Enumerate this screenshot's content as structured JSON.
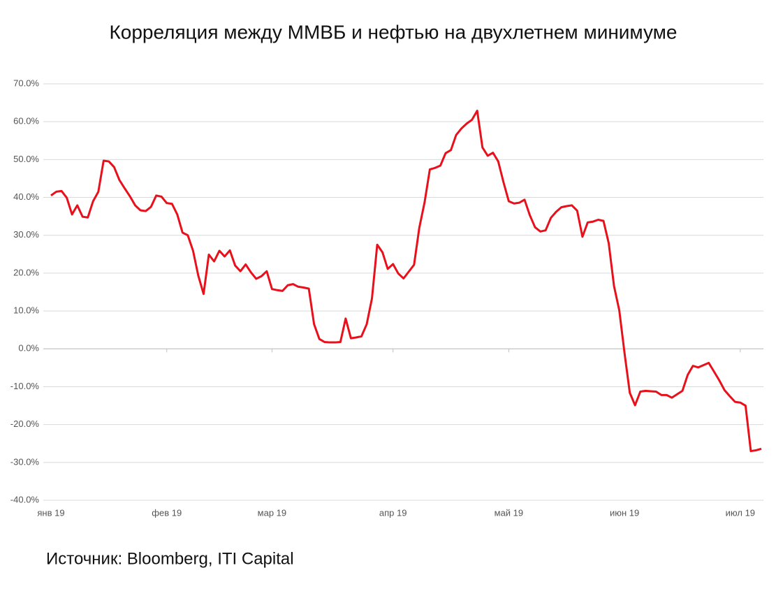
{
  "chart_data": {
    "type": "line",
    "title": "Корреляция между ММВБ и нефтью на двухлетнем минимуме",
    "source": "Источник: Bloomberg, ITI Capital",
    "categories": [
      "янв 19",
      null,
      null,
      null,
      null,
      null,
      null,
      null,
      null,
      null,
      null,
      null,
      null,
      null,
      null,
      null,
      null,
      null,
      null,
      null,
      null,
      null,
      "фев 19",
      null,
      null,
      null,
      null,
      null,
      null,
      null,
      null,
      null,
      null,
      null,
      null,
      null,
      null,
      null,
      null,
      null,
      null,
      null,
      "мар 19",
      null,
      null,
      null,
      null,
      null,
      null,
      null,
      null,
      null,
      null,
      null,
      null,
      null,
      null,
      null,
      null,
      null,
      null,
      null,
      null,
      null,
      null,
      "апр 19",
      null,
      null,
      null,
      null,
      null,
      null,
      null,
      null,
      null,
      null,
      null,
      null,
      null,
      null,
      null,
      null,
      null,
      null,
      null,
      null,
      null,
      "май 19",
      null,
      null,
      null,
      null,
      null,
      null,
      null,
      null,
      null,
      null,
      null,
      null,
      null,
      null,
      null,
      null,
      null,
      null,
      null,
      null,
      null,
      "июн 19",
      null,
      null,
      null,
      null,
      null,
      null,
      null,
      null,
      null,
      null,
      null,
      null,
      null,
      null,
      null,
      null,
      null,
      null,
      null,
      null,
      null,
      "июл 19",
      null,
      null,
      null,
      null
    ],
    "values": [
      40.5,
      41.5,
      41.7,
      39.9,
      35.5,
      37.9,
      34.9,
      34.7,
      39.0,
      41.5,
      49.7,
      49.5,
      48.0,
      44.6,
      42.4,
      40.3,
      37.9,
      36.6,
      36.4,
      37.5,
      40.5,
      40.2,
      38.5,
      38.3,
      35.5,
      30.7,
      30.0,
      25.9,
      19.3,
      14.5,
      24.9,
      23.1,
      25.9,
      24.4,
      26.0,
      22.0,
      20.5,
      22.3,
      20.2,
      18.5,
      19.2,
      20.5,
      15.8,
      15.5,
      15.3,
      16.8,
      17.1,
      16.4,
      16.2,
      15.9,
      6.5,
      2.6,
      1.8,
      1.7,
      1.7,
      1.8,
      8.0,
      2.8,
      3.0,
      3.3,
      6.5,
      13.3,
      27.5,
      25.5,
      21.1,
      22.4,
      19.9,
      18.6,
      20.4,
      22.2,
      32.0,
      38.7,
      47.4,
      47.8,
      48.4,
      51.7,
      52.5,
      56.5,
      58.2,
      59.5,
      60.5,
      62.9,
      53.2,
      51.0,
      51.8,
      49.5,
      44.0,
      39.0,
      38.4,
      38.6,
      39.4,
      35.3,
      32.1,
      31.0,
      31.3,
      34.6,
      36.2,
      37.4,
      37.7,
      37.9,
      36.5,
      29.6,
      33.4,
      33.6,
      34.1,
      33.8,
      27.9,
      16.6,
      10.2,
      -1.1,
      -11.6,
      -14.9,
      -11.3,
      -11.1,
      -11.2,
      -11.3,
      -12.2,
      -12.2,
      -12.9,
      -12.0,
      -11.1,
      -6.9,
      -4.5,
      -4.9,
      -4.3,
      -3.7,
      -6.0,
      -8.3,
      -10.9,
      -12.5,
      -14.0,
      -14.2,
      -15.0,
      -27.0,
      -26.8,
      -26.4
    ],
    "color": "#e8101a",
    "ylim": [
      -40,
      70
    ],
    "yticks": [
      {
        "value": -40,
        "label": "-40.0%"
      },
      {
        "value": -30,
        "label": "-30.0%"
      },
      {
        "value": -20,
        "label": "-20.0%"
      },
      {
        "value": -10,
        "label": "-10.0%"
      },
      {
        "value": 0,
        "label": "0.0%"
      },
      {
        "value": 10,
        "label": "10.0%"
      },
      {
        "value": 20,
        "label": "20.0%"
      },
      {
        "value": 30,
        "label": "30.0%"
      },
      {
        "value": 40,
        "label": "40.0%"
      },
      {
        "value": 50,
        "label": "50.0%"
      },
      {
        "value": 60,
        "label": "60.0%"
      },
      {
        "value": 70,
        "label": "70.0%"
      }
    ],
    "grid": true
  }
}
